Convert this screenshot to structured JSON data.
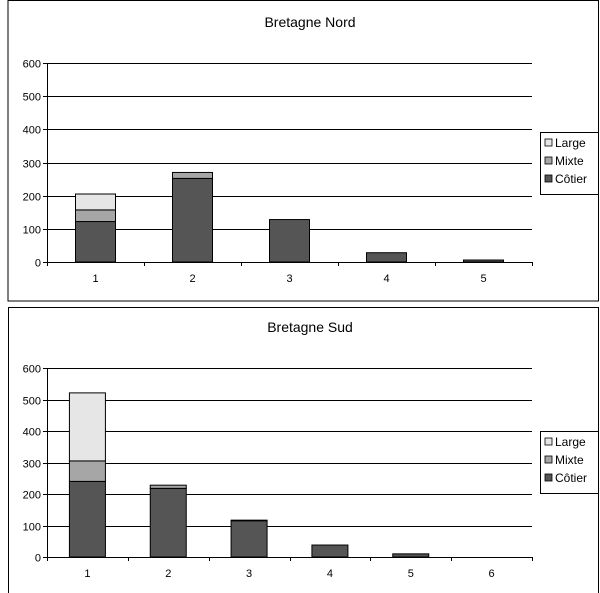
{
  "chart_data": [
    {
      "type": "bar",
      "stacked": true,
      "title": "Bretagne Nord",
      "xlabel": "",
      "ylabel": "",
      "categories": [
        "1",
        "2",
        "3",
        "4",
        "5"
      ],
      "ylim": [
        0,
        600
      ],
      "yticks": [
        "0",
        "100",
        "200",
        "300",
        "400",
        "500",
        "600"
      ],
      "grid": true,
      "legend_position": "right",
      "series": [
        {
          "name": "Côtier",
          "color": "#555555",
          "values": [
            122,
            252,
            128,
            28,
            6
          ]
        },
        {
          "name": "Mixte",
          "color": "#a6a6a6",
          "values": [
            35,
            18,
            0,
            0,
            0
          ]
        },
        {
          "name": "Large",
          "color": "#e6e6e6",
          "values": [
            48,
            0,
            0,
            0,
            0
          ]
        }
      ],
      "legend_items": [
        {
          "label": "Large",
          "color": "#e6e6e6"
        },
        {
          "label": "Mixte",
          "color": "#a6a6a6"
        },
        {
          "label": "Côtier",
          "color": "#555555"
        }
      ]
    },
    {
      "type": "bar",
      "stacked": true,
      "title": "Bretagne Sud",
      "xlabel": "",
      "ylabel": "",
      "categories": [
        "1",
        "2",
        "3",
        "4",
        "5",
        "6"
      ],
      "ylim": [
        0,
        600
      ],
      "yticks": [
        "0",
        "100",
        "200",
        "300",
        "400",
        "500",
        "600"
      ],
      "grid": true,
      "legend_position": "right",
      "series": [
        {
          "name": "Côtier",
          "color": "#555555",
          "values": [
            240,
            218,
            115,
            38,
            10,
            0
          ]
        },
        {
          "name": "Mixte",
          "color": "#a6a6a6",
          "values": [
            65,
            10,
            2,
            0,
            0,
            0
          ]
        },
        {
          "name": "Large",
          "color": "#e6e6e6",
          "values": [
            216,
            0,
            0,
            0,
            0,
            0
          ]
        }
      ],
      "legend_items": [
        {
          "label": "Large",
          "color": "#e6e6e6"
        },
        {
          "label": "Mixte",
          "color": "#a6a6a6"
        },
        {
          "label": "Côtier",
          "color": "#555555"
        }
      ]
    }
  ]
}
